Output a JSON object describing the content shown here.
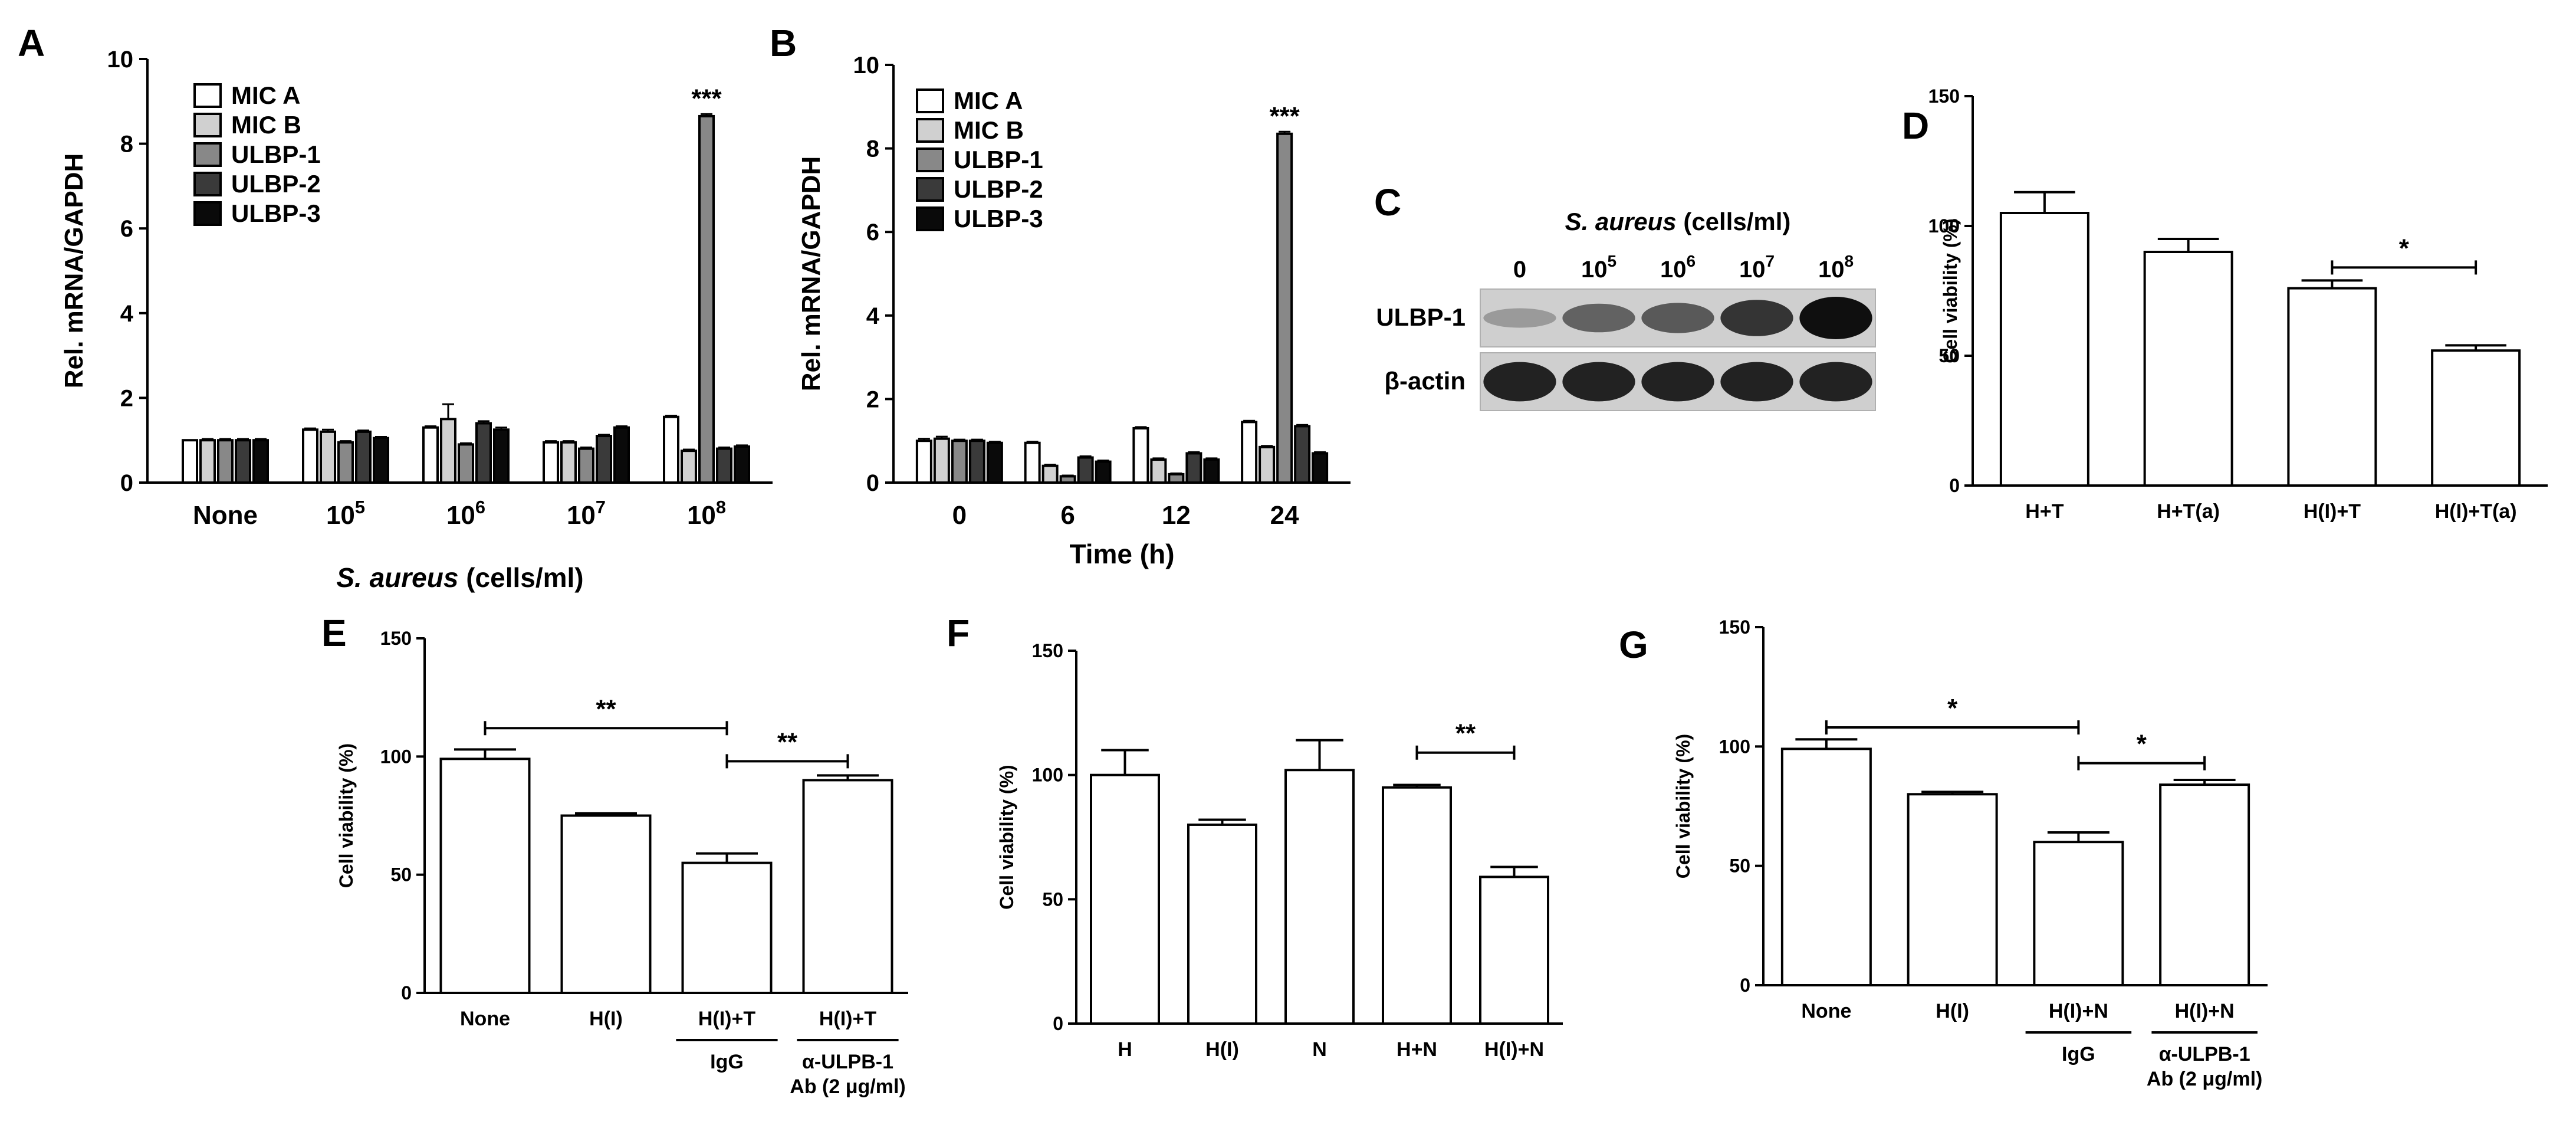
{
  "figure": {
    "panels": [
      {
        "letter": "A"
      },
      {
        "letter": "B"
      },
      {
        "letter": "C"
      },
      {
        "letter": "D"
      },
      {
        "letter": "E"
      },
      {
        "letter": "F"
      },
      {
        "letter": "G"
      }
    ]
  },
  "colors": {
    "MIC A": "#ffffff",
    "MIC B": "#d0d0d0",
    "ULBP-1": "#888888",
    "ULBP-2": "#3a3a3a",
    "ULBP-3": "#0a0a0a",
    "white_bar": "#ffffff"
  },
  "chart_data": [
    {
      "panel": "A",
      "type": "bar",
      "xlabel_prefix": "S. aureus",
      "xlabel_suffix": " (cells/ml)",
      "ylabel": "Rel. mRNA/GAPDH",
      "ylim": [
        0,
        10
      ],
      "yticks": [
        0,
        2,
        4,
        6,
        8,
        10
      ],
      "legend": "top-left",
      "categories": [
        {
          "base": "None",
          "exp": ""
        },
        {
          "base": "10",
          "exp": "5"
        },
        {
          "base": "10",
          "exp": "6"
        },
        {
          "base": "10",
          "exp": "7"
        },
        {
          "base": "10",
          "exp": "8"
        }
      ],
      "series": [
        {
          "name": "MIC A",
          "values": [
            1.0,
            1.25,
            1.3,
            0.95,
            1.55
          ],
          "errors": [
            0,
            0.03,
            0.03,
            0.03,
            0.03
          ]
        },
        {
          "name": "MIC B",
          "values": [
            1.0,
            1.2,
            1.5,
            0.95,
            0.75
          ],
          "errors": [
            0.03,
            0.05,
            0.35,
            0.03,
            0.03
          ]
        },
        {
          "name": "ULBP-1",
          "values": [
            1.0,
            0.95,
            0.9,
            0.8,
            8.65
          ],
          "errors": [
            0.03,
            0.03,
            0.03,
            0.03,
            0.05
          ]
        },
        {
          "name": "ULBP-2",
          "values": [
            1.0,
            1.2,
            1.4,
            1.1,
            0.8
          ],
          "errors": [
            0.03,
            0.03,
            0.05,
            0.03,
            0.03
          ]
        },
        {
          "name": "ULBP-3",
          "values": [
            1.0,
            1.05,
            1.25,
            1.3,
            0.85
          ],
          "errors": [
            0.03,
            0.03,
            0.05,
            0.03,
            0.03
          ]
        }
      ],
      "annotations": [
        {
          "text": "***",
          "category": 4,
          "series": 2
        }
      ]
    },
    {
      "panel": "B",
      "type": "bar",
      "xlabel": "Time (h)",
      "ylabel": "Rel. mRNA/GAPDH",
      "ylim": [
        0,
        10
      ],
      "yticks": [
        0,
        2,
        4,
        6,
        8,
        10
      ],
      "legend": "top-left",
      "categories": [
        "0",
        "6",
        "12",
        "24"
      ],
      "series": [
        {
          "name": "MIC A",
          "values": [
            1.0,
            0.95,
            1.3,
            1.45
          ],
          "errors": [
            0.05,
            0.03,
            0.03,
            0.03
          ]
        },
        {
          "name": "MIC B",
          "values": [
            1.05,
            0.4,
            0.55,
            0.85
          ],
          "errors": [
            0.05,
            0.03,
            0.03,
            0.03
          ]
        },
        {
          "name": "ULBP-1",
          "values": [
            1.0,
            0.15,
            0.2,
            8.35
          ],
          "errors": [
            0.03,
            0.02,
            0.02,
            0.05
          ]
        },
        {
          "name": "ULBP-2",
          "values": [
            1.0,
            0.6,
            0.7,
            1.35
          ],
          "errors": [
            0.03,
            0.03,
            0.03,
            0.03
          ]
        },
        {
          "name": "ULBP-3",
          "values": [
            0.95,
            0.5,
            0.55,
            0.7
          ],
          "errors": [
            0.03,
            0.03,
            0.03,
            0.03
          ]
        }
      ],
      "annotations": [
        {
          "text": "***",
          "category": 3,
          "series": 2
        }
      ]
    },
    {
      "panel": "C",
      "type": "blot",
      "title_prefix": "S. aureus",
      "title_suffix": " (cells/ml)",
      "lanes": [
        {
          "base": "0",
          "exp": ""
        },
        {
          "base": "10",
          "exp": "5"
        },
        {
          "base": "10",
          "exp": "6"
        },
        {
          "base": "10",
          "exp": "7"
        },
        {
          "base": "10",
          "exp": "8"
        }
      ],
      "rows": [
        {
          "label": "ULBP-1",
          "intensities": [
            0.25,
            0.55,
            0.6,
            0.8,
            1.0
          ]
        },
        {
          "label": "β-actin",
          "intensities": [
            0.9,
            0.9,
            0.9,
            0.9,
            0.9
          ]
        }
      ]
    },
    {
      "panel": "D",
      "type": "bar",
      "ylabel": "Cell viability (%)",
      "ylim": [
        0,
        150
      ],
      "yticks": [
        0,
        50,
        100,
        150
      ],
      "categories": [
        "H+T",
        "H+T(a)",
        "H(I)+T",
        "H(I)+T(a)"
      ],
      "values": [
        105,
        90,
        76,
        52
      ],
      "errors": [
        8,
        5,
        3,
        2
      ],
      "brackets": [
        {
          "from": 2,
          "to": 3,
          "text": "*",
          "y": 84
        }
      ]
    },
    {
      "panel": "E",
      "type": "bar",
      "ylabel": "Cell viability (%)",
      "ylim": [
        0,
        150
      ],
      "yticks": [
        0,
        50,
        100,
        150
      ],
      "categories": [
        "None",
        "H(I)",
        "H(I)+T",
        "H(I)+T"
      ],
      "values": [
        99,
        75,
        55,
        90
      ],
      "errors": [
        4,
        1,
        4,
        2
      ],
      "groups": [
        {
          "index": 2,
          "lines": [
            "IgG"
          ]
        },
        {
          "index": 3,
          "lines": [
            "α-ULPB-1",
            "Ab (2 μg/ml)"
          ]
        }
      ],
      "brackets": [
        {
          "from": 0,
          "to": 2,
          "text": "**",
          "y": 112
        },
        {
          "from": 2,
          "to": 3,
          "text": "**",
          "y": 98
        }
      ]
    },
    {
      "panel": "F",
      "type": "bar",
      "ylabel": "Cell viability (%)",
      "ylim": [
        0,
        150
      ],
      "yticks": [
        0,
        50,
        100,
        150
      ],
      "categories": [
        "H",
        "H(I)",
        "N",
        "H+N",
        "H(I)+N"
      ],
      "values": [
        100,
        80,
        102,
        95,
        59
      ],
      "errors": [
        10,
        2,
        12,
        1,
        4
      ],
      "brackets": [
        {
          "from": 3,
          "to": 4,
          "text": "**",
          "y": 109
        }
      ]
    },
    {
      "panel": "G",
      "type": "bar",
      "ylabel": "Cell viability (%)",
      "ylim": [
        0,
        150
      ],
      "yticks": [
        0,
        50,
        100,
        150
      ],
      "categories": [
        "None",
        "H(I)",
        "H(I)+N",
        "H(I)+N"
      ],
      "values": [
        99,
        80,
        60,
        84
      ],
      "errors": [
        4,
        1,
        4,
        2
      ],
      "groups": [
        {
          "index": 2,
          "lines": [
            "IgG"
          ]
        },
        {
          "index": 3,
          "lines": [
            "α-ULPB-1",
            "Ab (2 μg/ml)"
          ]
        }
      ],
      "brackets": [
        {
          "from": 0,
          "to": 2,
          "text": "*",
          "y": 108
        },
        {
          "from": 2,
          "to": 3,
          "text": "*",
          "y": 93
        }
      ]
    }
  ]
}
